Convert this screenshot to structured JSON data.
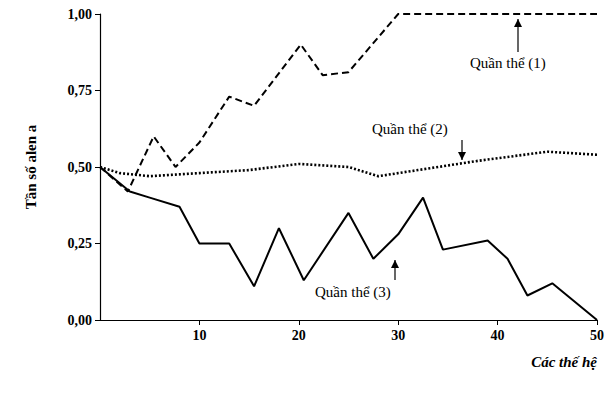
{
  "chart_data": {
    "type": "line",
    "x_label": "Các thế hệ",
    "y_label": "Tần số alen a",
    "xlim": [
      0,
      50
    ],
    "xticks": [
      10,
      20,
      30,
      40,
      50
    ],
    "ylim": [
      0,
      1
    ],
    "yticks": [
      {
        "value": 0,
        "label": "0,00"
      },
      {
        "value": 0.25,
        "label": "0,25"
      },
      {
        "value": 0.5,
        "label": "0,50"
      },
      {
        "value": 0.75,
        "label": "0,75"
      },
      {
        "value": 1,
        "label": "1,00"
      }
    ],
    "grid": false,
    "series": [
      {
        "name": "Quần thể (1)",
        "color": "#000000",
        "line_style": "dashed",
        "marker": "none",
        "x": [
          0,
          2.8,
          5.4,
          7.6,
          10,
          13,
          15.5,
          20.2,
          22.4,
          25,
          30,
          35,
          40,
          45,
          50
        ],
        "values": [
          0.5,
          0.42,
          0.6,
          0.5,
          0.58,
          0.73,
          0.7,
          0.9,
          0.8,
          0.81,
          1.0,
          1.0,
          1.0,
          1.0,
          1.0
        ]
      },
      {
        "name": "Quần thể (2)",
        "color": "#000000",
        "line_style": "dotted",
        "marker": "none",
        "x": [
          0,
          2,
          5,
          10,
          15,
          20,
          25,
          28,
          32,
          38,
          45,
          50
        ],
        "values": [
          0.5,
          0.48,
          0.47,
          0.48,
          0.49,
          0.51,
          0.5,
          0.47,
          0.49,
          0.52,
          0.55,
          0.54
        ]
      },
      {
        "name": "Quần thể (3)",
        "color": "#000000",
        "line_style": "solid",
        "marker": "none",
        "x": [
          0,
          3,
          5,
          8,
          10,
          13,
          15.5,
          18,
          20.5,
          25,
          27.5,
          30,
          32.5,
          34.5,
          39,
          41,
          43,
          45.5,
          50
        ],
        "values": [
          0.5,
          0.42,
          0.4,
          0.37,
          0.25,
          0.25,
          0.11,
          0.3,
          0.13,
          0.35,
          0.2,
          0.28,
          0.4,
          0.23,
          0.26,
          0.2,
          0.08,
          0.12,
          0.0
        ]
      }
    ]
  }
}
